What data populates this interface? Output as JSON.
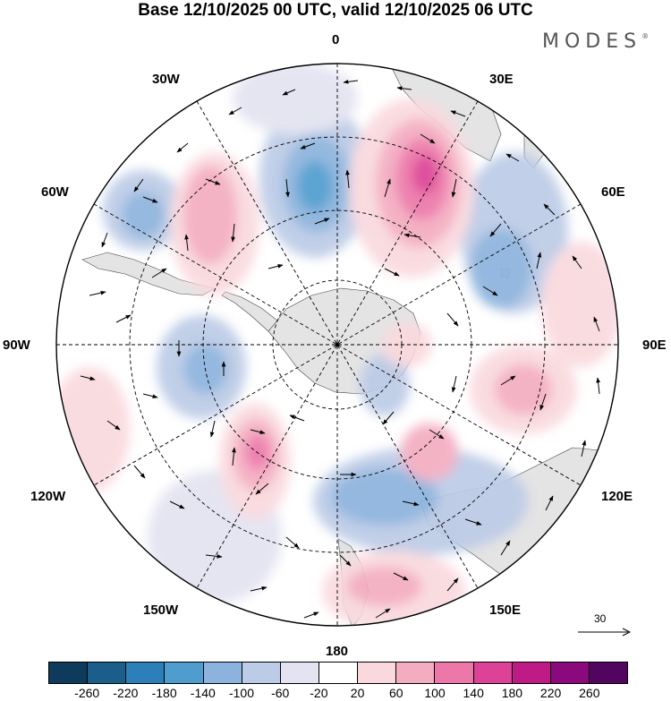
{
  "title": "Base 12/10/2025 00 UTC, valid 12/10/2025 06 UTC",
  "brand": "MODES",
  "brand_mark": "®",
  "longitude_labels": {
    "top": "0",
    "top_right": "30E",
    "right_upper": "60E",
    "right": "90E",
    "right_lower": "120E",
    "bottom_right": "150E",
    "bottom": "180",
    "bottom_left": "150W",
    "left_lower": "120W",
    "left": "90W",
    "left_upper": "60W",
    "top_left": "30W"
  },
  "reference_vector": {
    "label": "30",
    "icon": "arrow-right-icon"
  },
  "colorbar": {
    "ticks": [
      "-260",
      "-220",
      "-180",
      "-140",
      "-100",
      "-60",
      "-20",
      "20",
      "60",
      "100",
      "140",
      "180",
      "220",
      "260"
    ],
    "colors": [
      "#0e3a5c",
      "#1b5e8c",
      "#2c7fb8",
      "#4f9dcf",
      "#8cb3dd",
      "#bccbe6",
      "#e3e3f1",
      "#ffffff",
      "#f9d9de",
      "#f4acc1",
      "#ec78a9",
      "#dd4296",
      "#bf1b86",
      "#8a0a7d",
      "#52055e"
    ]
  },
  "colors": {
    "land": "#e4e4e4",
    "ocean": "#ffffff",
    "grid": "#000000"
  }
}
